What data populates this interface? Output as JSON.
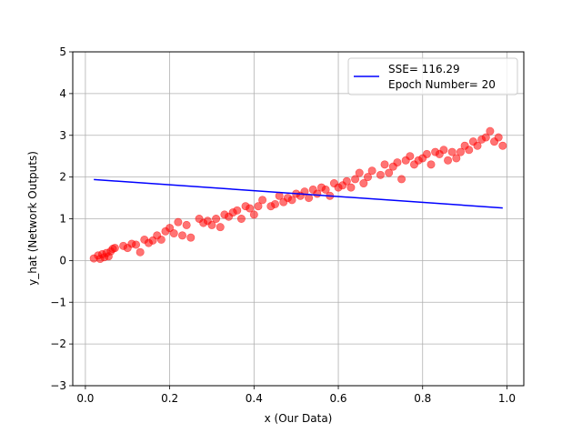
{
  "chart_data": {
    "type": "scatter",
    "xlabel": "x (Our Data)",
    "ylabel": "y_hat (Network Outputs)",
    "xlim": [
      -0.03,
      1.04
    ],
    "ylim": [
      -3,
      5
    ],
    "xticks": [
      0.0,
      0.2,
      0.4,
      0.6,
      0.8,
      1.0
    ],
    "xtick_labels": [
      "0.0",
      "0.2",
      "0.4",
      "0.6",
      "0.8",
      "1.0"
    ],
    "yticks": [
      -3,
      -2,
      -1,
      0,
      1,
      2,
      3,
      4,
      5
    ],
    "ytick_labels": [
      "−3",
      "−2",
      "−1",
      "0",
      "1",
      "2",
      "3",
      "4",
      "5"
    ],
    "grid": true,
    "legend_position": "top-right",
    "legend": {
      "line1": "SSE= 116.29",
      "line2": "Epoch Number= 20"
    },
    "series": [
      {
        "kind": "scatter",
        "color": "#ff0000",
        "points": [
          [
            0.02,
            0.05
          ],
          [
            0.03,
            0.12
          ],
          [
            0.035,
            0.04
          ],
          [
            0.04,
            0.15
          ],
          [
            0.045,
            0.08
          ],
          [
            0.05,
            0.18
          ],
          [
            0.055,
            0.1
          ],
          [
            0.06,
            0.22
          ],
          [
            0.065,
            0.28
          ],
          [
            0.07,
            0.3
          ],
          [
            0.09,
            0.35
          ],
          [
            0.1,
            0.3
          ],
          [
            0.11,
            0.4
          ],
          [
            0.12,
            0.38
          ],
          [
            0.13,
            0.2
          ],
          [
            0.14,
            0.5
          ],
          [
            0.15,
            0.42
          ],
          [
            0.16,
            0.48
          ],
          [
            0.17,
            0.6
          ],
          [
            0.18,
            0.5
          ],
          [
            0.19,
            0.7
          ],
          [
            0.2,
            0.78
          ],
          [
            0.21,
            0.65
          ],
          [
            0.22,
            0.92
          ],
          [
            0.23,
            0.6
          ],
          [
            0.24,
            0.85
          ],
          [
            0.25,
            0.55
          ],
          [
            0.27,
            1.0
          ],
          [
            0.28,
            0.9
          ],
          [
            0.29,
            0.95
          ],
          [
            0.3,
            0.85
          ],
          [
            0.31,
            1.0
          ],
          [
            0.32,
            0.8
          ],
          [
            0.33,
            1.1
          ],
          [
            0.34,
            1.05
          ],
          [
            0.35,
            1.15
          ],
          [
            0.36,
            1.2
          ],
          [
            0.37,
            1.0
          ],
          [
            0.38,
            1.3
          ],
          [
            0.39,
            1.25
          ],
          [
            0.4,
            1.1
          ],
          [
            0.41,
            1.3
          ],
          [
            0.42,
            1.45
          ],
          [
            0.44,
            1.3
          ],
          [
            0.45,
            1.35
          ],
          [
            0.46,
            1.55
          ],
          [
            0.47,
            1.4
          ],
          [
            0.48,
            1.5
          ],
          [
            0.49,
            1.45
          ],
          [
            0.5,
            1.6
          ],
          [
            0.51,
            1.55
          ],
          [
            0.52,
            1.65
          ],
          [
            0.53,
            1.5
          ],
          [
            0.54,
            1.7
          ],
          [
            0.55,
            1.6
          ],
          [
            0.56,
            1.75
          ],
          [
            0.57,
            1.7
          ],
          [
            0.58,
            1.55
          ],
          [
            0.59,
            1.85
          ],
          [
            0.6,
            1.75
          ],
          [
            0.61,
            1.8
          ],
          [
            0.62,
            1.9
          ],
          [
            0.63,
            1.75
          ],
          [
            0.64,
            1.95
          ],
          [
            0.65,
            2.1
          ],
          [
            0.66,
            1.85
          ],
          [
            0.67,
            2.0
          ],
          [
            0.68,
            2.15
          ],
          [
            0.7,
            2.05
          ],
          [
            0.71,
            2.3
          ],
          [
            0.72,
            2.1
          ],
          [
            0.73,
            2.25
          ],
          [
            0.74,
            2.35
          ],
          [
            0.75,
            1.95
          ],
          [
            0.76,
            2.4
          ],
          [
            0.77,
            2.5
          ],
          [
            0.78,
            2.3
          ],
          [
            0.79,
            2.4
          ],
          [
            0.8,
            2.45
          ],
          [
            0.81,
            2.55
          ],
          [
            0.82,
            2.3
          ],
          [
            0.83,
            2.6
          ],
          [
            0.84,
            2.55
          ],
          [
            0.85,
            2.65
          ],
          [
            0.86,
            2.4
          ],
          [
            0.87,
            2.6
          ],
          [
            0.88,
            2.45
          ],
          [
            0.89,
            2.6
          ],
          [
            0.9,
            2.75
          ],
          [
            0.91,
            2.65
          ],
          [
            0.92,
            2.85
          ],
          [
            0.93,
            2.75
          ],
          [
            0.94,
            2.9
          ],
          [
            0.95,
            2.95
          ],
          [
            0.96,
            3.1
          ],
          [
            0.97,
            2.85
          ],
          [
            0.98,
            2.95
          ],
          [
            0.99,
            2.75
          ]
        ]
      },
      {
        "kind": "line",
        "color": "#0000ff",
        "x": [
          0.02,
          0.99
        ],
        "y": [
          1.94,
          1.26
        ]
      }
    ]
  }
}
